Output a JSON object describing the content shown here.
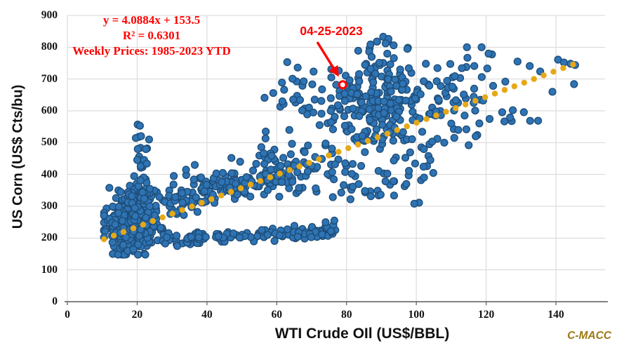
{
  "annotation_block": {
    "equation": "y = 4.0884x + 153.5",
    "r_squared": "R² = 0.6301",
    "series_label": "Weekly Prices: 1985-2023 YTD"
  },
  "callout": {
    "label": "04-25-2023"
  },
  "watermark": "C-MACC",
  "axes": {
    "x_title": "WTI Crude OIl (US$/BBL)",
    "y_title": "US Corn (US$ Cts/bu)"
  },
  "colors": {
    "marker_fill": "#2E74B5",
    "marker_border": "#1F4E79",
    "trend": "#E6A817",
    "grid": "#D6D6D6",
    "axis": "#595959",
    "annotation_red": "#FF0000",
    "watermark_gold": "#9C7A14",
    "background": "#FFFFFF"
  },
  "chart_data": {
    "type": "scatter",
    "title": "",
    "xlabel": "WTI Crude OIl (US$/BBL)",
    "ylabel": "US Corn (US$ Cts/bu)",
    "xlim": [
      0,
      154
    ],
    "ylim": [
      0,
      900
    ],
    "x_ticks": [
      0,
      20,
      40,
      60,
      80,
      100,
      120,
      140
    ],
    "y_ticks": [
      0,
      100,
      200,
      300,
      400,
      500,
      600,
      700,
      800,
      900
    ],
    "grid": true,
    "legend": "none",
    "series_label": "Weekly Prices: 1985-2023 YTD",
    "trendline": {
      "type": "linear",
      "equation": "y = 4.0884x + 153.5",
      "slope": 4.0884,
      "intercept": 153.5,
      "r_squared": 0.6301,
      "x_start": 10.5,
      "x_end": 145.5,
      "dot_step": 2.8,
      "style": "dotted"
    },
    "highlight_point": {
      "x": 78.9,
      "y": 682,
      "date": "04-25-2023"
    },
    "marker": {
      "radius": 4.9,
      "stroke_width": 1.4
    },
    "trend_marker_radius": 4.2,
    "seed": 20230425,
    "clusters": [
      {
        "type": "gauss",
        "n": 310,
        "mx": 18.5,
        "my": 245,
        "sx": 3.9,
        "sy": 44,
        "clip": [
          10.5,
          29.5,
          148,
          400
        ]
      },
      {
        "type": "gauss",
        "n": 55,
        "mx": 20.5,
        "my": 330,
        "sx": 2.8,
        "sy": 38,
        "clip": [
          13,
          28,
          255,
          430
        ]
      },
      {
        "type": "gauss",
        "n": 20,
        "mx": 21.8,
        "my": 455,
        "sx": 1.0,
        "sy": 52,
        "clip": [
          19.5,
          24,
          345,
          557
        ]
      },
      {
        "type": "strip",
        "n": 160,
        "x0": 29,
        "x1": 62,
        "a": 265,
        "b": 2.0,
        "s": 27,
        "clipy": [
          240,
          470
        ]
      },
      {
        "type": "strip",
        "n": 25,
        "x0": 26,
        "x1": 38,
        "a": 165,
        "b": 0.9,
        "s": 13,
        "clipy": [
          150,
          230
        ]
      },
      {
        "type": "strip",
        "n": 105,
        "x0": 34,
        "x1": 77,
        "a": 170,
        "b": 0.75,
        "s": 11,
        "clipy": [
          165,
          260
        ]
      },
      {
        "type": "gauss",
        "n": 12,
        "mx": 57,
        "my": 480,
        "sx": 1.6,
        "sy": 42,
        "clip": [
          53,
          60,
          415,
          555
        ]
      },
      {
        "type": "strip",
        "n": 50,
        "x0": 60,
        "x1": 80,
        "a": 300,
        "b": 1.5,
        "s": 42,
        "clipy": [
          325,
          520
        ]
      },
      {
        "type": "gauss",
        "n": 30,
        "mx": 69,
        "my": 628,
        "sx": 4.4,
        "sy": 58,
        "clip": [
          61,
          78,
          540,
          772
        ]
      },
      {
        "type": "gauss",
        "n": 195,
        "mx": 90,
        "my": 640,
        "sx": 6.6,
        "sy": 74,
        "clip": [
          75.5,
          106,
          465,
          818
        ]
      },
      {
        "type": "strip",
        "n": 55,
        "x0": 78,
        "x1": 105,
        "a": 250,
        "b": 1.6,
        "s": 52,
        "clipy": [
          295,
          520
        ]
      },
      {
        "type": "gauss",
        "n": 22,
        "mx": 83,
        "my": 555,
        "sx": 6.0,
        "sy": 38,
        "clip": [
          74,
          95,
          495,
          625
        ]
      },
      {
        "type": "strip",
        "n": 28,
        "x0": 95,
        "x1": 119,
        "a": 470,
        "b": 1.2,
        "s": 45,
        "clipy": [
          470,
          700
        ]
      },
      {
        "type": "gauss",
        "n": 26,
        "mx": 112,
        "my": 700,
        "sx": 4.6,
        "sy": 46,
        "clip": [
          104,
          122,
          610,
          800
        ]
      },
      {
        "type": "gauss",
        "n": 9,
        "mx": 128,
        "my": 588,
        "sx": 4.0,
        "sy": 28,
        "clip": [
          121,
          136,
          540,
          640
        ]
      }
    ],
    "notable_points": [
      [
        90.5,
        833
      ],
      [
        92,
        826
      ],
      [
        91.2,
        812
      ],
      [
        93.5,
        806
      ],
      [
        88.7,
        818
      ],
      [
        120.7,
        780
      ],
      [
        139,
        660
      ],
      [
        140.6,
        761
      ],
      [
        142.3,
        752
      ],
      [
        144.2,
        748
      ],
      [
        145.5,
        744
      ],
      [
        145.2,
        684
      ],
      [
        129,
        755
      ],
      [
        132.5,
        741
      ],
      [
        135.5,
        724
      ],
      [
        125.5,
        692
      ],
      [
        63,
        753
      ],
      [
        66,
        736
      ],
      [
        64.5,
        701
      ],
      [
        61.5,
        689
      ],
      [
        59,
        656
      ],
      [
        56.5,
        641
      ],
      [
        20.8,
        553
      ],
      [
        34,
        415
      ],
      [
        36.5,
        430
      ],
      [
        30.5,
        395
      ],
      [
        47,
        452
      ],
      [
        49.5,
        440
      ],
      [
        68,
        470
      ],
      [
        71,
        455
      ],
      [
        74,
        250
      ],
      [
        76.5,
        255
      ],
      [
        115,
        492
      ],
      [
        117,
        520
      ],
      [
        110,
        560
      ],
      [
        112,
        540
      ],
      [
        108,
        500
      ]
    ]
  }
}
